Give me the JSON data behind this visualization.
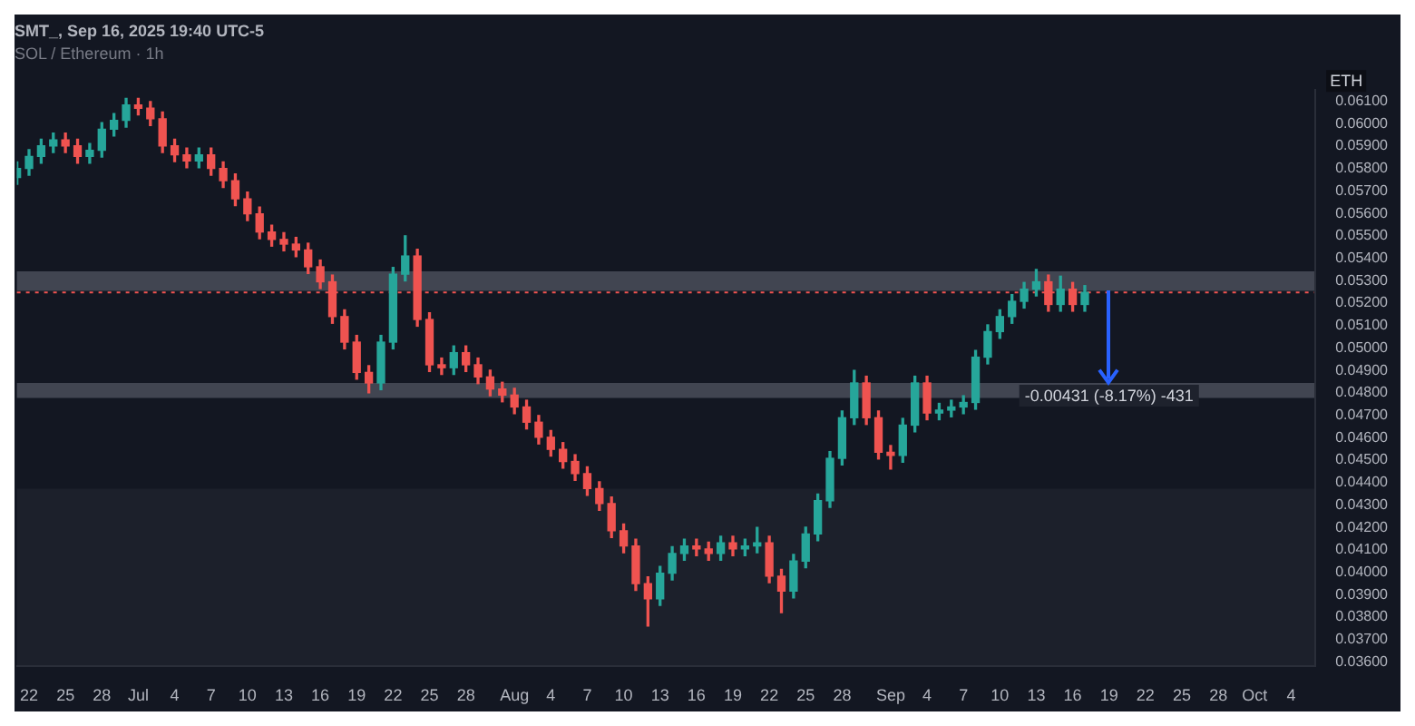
{
  "chart_data": {
    "type": "candlestick",
    "title": "SMT_, Sep 16, 2025 19:40 UTC-5",
    "subtitle": "SOL / Ethereum · 1h",
    "ylabel": "ETH",
    "x": [
      "2025-06-21",
      "2025-06-22",
      "2025-06-23",
      "2025-06-24",
      "2025-06-25",
      "2025-06-26",
      "2025-06-27",
      "2025-06-28",
      "2025-06-29",
      "2025-06-30",
      "2025-07-01",
      "2025-07-02",
      "2025-07-03",
      "2025-07-04",
      "2025-07-05",
      "2025-07-06",
      "2025-07-07",
      "2025-07-08",
      "2025-07-09",
      "2025-07-10",
      "2025-07-11",
      "2025-07-12",
      "2025-07-13",
      "2025-07-14",
      "2025-07-15",
      "2025-07-16",
      "2025-07-17",
      "2025-07-18",
      "2025-07-19",
      "2025-07-20",
      "2025-07-21",
      "2025-07-22",
      "2025-07-23",
      "2025-07-24",
      "2025-07-25",
      "2025-07-26",
      "2025-07-27",
      "2025-07-28",
      "2025-07-29",
      "2025-07-30",
      "2025-07-31",
      "2025-08-01",
      "2025-08-02",
      "2025-08-03",
      "2025-08-04",
      "2025-08-05",
      "2025-08-06",
      "2025-08-07",
      "2025-08-08",
      "2025-08-09",
      "2025-08-10",
      "2025-08-11",
      "2025-08-12",
      "2025-08-13",
      "2025-08-14",
      "2025-08-15",
      "2025-08-16",
      "2025-08-17",
      "2025-08-18",
      "2025-08-19",
      "2025-08-20",
      "2025-08-21",
      "2025-08-22",
      "2025-08-23",
      "2025-08-24",
      "2025-08-25",
      "2025-08-26",
      "2025-08-27",
      "2025-08-28",
      "2025-08-29",
      "2025-08-30",
      "2025-08-31",
      "2025-09-01",
      "2025-09-02",
      "2025-09-03",
      "2025-09-04",
      "2025-09-05",
      "2025-09-06",
      "2025-09-07",
      "2025-09-08",
      "2025-09-09",
      "2025-09-10",
      "2025-09-11",
      "2025-09-12",
      "2025-09-13",
      "2025-09-14",
      "2025-09-15",
      "2025-09-16",
      "2025-09-17"
    ],
    "ohlc": [
      [
        0.0576,
        0.0583,
        0.0573,
        0.058
      ],
      [
        0.058,
        0.05884,
        0.0577,
        0.05854
      ],
      [
        0.05854,
        0.05931,
        0.05824,
        0.05901
      ],
      [
        0.05901,
        0.05958,
        0.05871,
        0.05928
      ],
      [
        0.05928,
        0.05958,
        0.05871,
        0.05901
      ],
      [
        0.05901,
        0.05931,
        0.05824,
        0.05854
      ],
      [
        0.05854,
        0.05911,
        0.05824,
        0.05881
      ],
      [
        0.05881,
        0.06005,
        0.05851,
        0.05975
      ],
      [
        0.05975,
        0.06045,
        0.05945,
        0.06015
      ],
      [
        0.06015,
        0.06113,
        0.05985,
        0.06083
      ],
      [
        0.06083,
        0.06113,
        0.06039,
        0.06069
      ],
      [
        0.06069,
        0.06099,
        0.05992,
        0.06022
      ],
      [
        0.06022,
        0.06052,
        0.05871,
        0.05901
      ],
      [
        0.05901,
        0.05931,
        0.05831,
        0.05861
      ],
      [
        0.05861,
        0.05891,
        0.05804,
        0.05834
      ],
      [
        0.05834,
        0.05891,
        0.05804,
        0.05861
      ],
      [
        0.05861,
        0.05891,
        0.0577,
        0.058
      ],
      [
        0.058,
        0.0583,
        0.05716,
        0.05746
      ],
      [
        0.05746,
        0.05776,
        0.05635,
        0.05665
      ],
      [
        0.05665,
        0.05695,
        0.05568,
        0.05598
      ],
      [
        0.05598,
        0.05628,
        0.05487,
        0.05517
      ],
      [
        0.05517,
        0.05547,
        0.05454,
        0.05484
      ],
      [
        0.05484,
        0.05514,
        0.05433,
        0.05463
      ],
      [
        0.05463,
        0.05493,
        0.05407,
        0.05437
      ],
      [
        0.05437,
        0.05467,
        0.05332,
        0.05362
      ],
      [
        0.05362,
        0.05392,
        0.05265,
        0.05295
      ],
      [
        0.05295,
        0.05325,
        0.0511,
        0.0514
      ],
      [
        0.0514,
        0.0517,
        0.04996,
        0.05026
      ],
      [
        0.05026,
        0.05056,
        0.04861,
        0.04891
      ],
      [
        0.04891,
        0.04921,
        0.048,
        0.04844
      ],
      [
        0.04844,
        0.05056,
        0.04814,
        0.05026
      ],
      [
        0.05026,
        0.05359,
        0.04996,
        0.05329
      ],
      [
        0.05329,
        0.055,
        0.05299,
        0.0541
      ],
      [
        0.0541,
        0.0544,
        0.05097,
        0.05127
      ],
      [
        0.05127,
        0.05157,
        0.04895,
        0.04925
      ],
      [
        0.04925,
        0.04955,
        0.04882,
        0.04912
      ],
      [
        0.04912,
        0.05009,
        0.04882,
        0.04979
      ],
      [
        0.04979,
        0.05009,
        0.04895,
        0.04925
      ],
      [
        0.04925,
        0.04955,
        0.04841,
        0.04871
      ],
      [
        0.04871,
        0.04901,
        0.04787,
        0.04817
      ],
      [
        0.04817,
        0.04847,
        0.0476,
        0.0479
      ],
      [
        0.0479,
        0.0482,
        0.04707,
        0.04737
      ],
      [
        0.04737,
        0.04767,
        0.04639,
        0.04669
      ],
      [
        0.04669,
        0.04699,
        0.04572,
        0.04602
      ],
      [
        0.04602,
        0.04632,
        0.04518,
        0.04548
      ],
      [
        0.04548,
        0.04578,
        0.04464,
        0.04494
      ],
      [
        0.04494,
        0.04524,
        0.0441,
        0.0444
      ],
      [
        0.0444,
        0.0447,
        0.04343,
        0.04373
      ],
      [
        0.04373,
        0.04403,
        0.04276,
        0.04306
      ],
      [
        0.04306,
        0.04336,
        0.04155,
        0.04185
      ],
      [
        0.04185,
        0.04215,
        0.04087,
        0.04117
      ],
      [
        0.04117,
        0.04147,
        0.03919,
        0.03949
      ],
      [
        0.03949,
        0.03979,
        0.0376,
        0.03882
      ],
      [
        0.03882,
        0.04026,
        0.03852,
        0.03996
      ],
      [
        0.03996,
        0.04114,
        0.03966,
        0.04084
      ],
      [
        0.04084,
        0.04147,
        0.04054,
        0.04117
      ],
      [
        0.04117,
        0.04147,
        0.04074,
        0.04104
      ],
      [
        0.04104,
        0.04134,
        0.04054,
        0.04084
      ],
      [
        0.04084,
        0.04161,
        0.04054,
        0.04131
      ],
      [
        0.04131,
        0.04161,
        0.04074,
        0.04104
      ],
      [
        0.04104,
        0.04147,
        0.04074,
        0.04117
      ],
      [
        0.04117,
        0.042,
        0.04087,
        0.04131
      ],
      [
        0.04131,
        0.04161,
        0.03953,
        0.03983
      ],
      [
        0.03983,
        0.04013,
        0.0382,
        0.03916
      ],
      [
        0.03916,
        0.0408,
        0.03886,
        0.0405
      ],
      [
        0.0405,
        0.04201,
        0.0402,
        0.04171
      ],
      [
        0.04171,
        0.04349,
        0.04141,
        0.04319
      ],
      [
        0.04319,
        0.04538,
        0.04289,
        0.04508
      ],
      [
        0.04508,
        0.04719,
        0.04478,
        0.04689
      ],
      [
        0.04689,
        0.049,
        0.04659,
        0.04844
      ],
      [
        0.04844,
        0.04874,
        0.04659,
        0.04689
      ],
      [
        0.04689,
        0.04719,
        0.04505,
        0.04535
      ],
      [
        0.04535,
        0.04565,
        0.0446,
        0.04521
      ],
      [
        0.04521,
        0.04686,
        0.04491,
        0.04656
      ],
      [
        0.04656,
        0.04874,
        0.04626,
        0.04844
      ],
      [
        0.04844,
        0.04874,
        0.0468,
        0.0471
      ],
      [
        0.0471,
        0.04753,
        0.0468,
        0.04723
      ],
      [
        0.04723,
        0.04767,
        0.04693,
        0.04737
      ],
      [
        0.04737,
        0.04787,
        0.04707,
        0.04757
      ],
      [
        0.04757,
        0.04989,
        0.04727,
        0.04959
      ],
      [
        0.04959,
        0.05103,
        0.04929,
        0.05073
      ],
      [
        0.05073,
        0.0517,
        0.05043,
        0.0514
      ],
      [
        0.0514,
        0.05238,
        0.0511,
        0.05208
      ],
      [
        0.05208,
        0.05292,
        0.05178,
        0.05262
      ],
      [
        0.05262,
        0.0535,
        0.05232,
        0.05295
      ],
      [
        0.05295,
        0.05325,
        0.05164,
        0.05194
      ],
      [
        0.05194,
        0.0532,
        0.05164,
        0.05262
      ],
      [
        0.05262,
        0.05292,
        0.05164,
        0.05194
      ],
      [
        0.05194,
        0.05278,
        0.05164,
        0.05248
      ]
    ],
    "xlim": [
      "2025-06-21",
      "2025-10-06"
    ],
    "xticks": [
      {
        "value": "2025-06-22",
        "label": "22"
      },
      {
        "value": "2025-06-25",
        "label": "25"
      },
      {
        "value": "2025-06-28",
        "label": "28"
      },
      {
        "value": "2025-07-01",
        "label": "Jul"
      },
      {
        "value": "2025-07-04",
        "label": "4"
      },
      {
        "value": "2025-07-07",
        "label": "7"
      },
      {
        "value": "2025-07-10",
        "label": "10"
      },
      {
        "value": "2025-07-13",
        "label": "13"
      },
      {
        "value": "2025-07-16",
        "label": "16"
      },
      {
        "value": "2025-07-19",
        "label": "19"
      },
      {
        "value": "2025-07-22",
        "label": "22"
      },
      {
        "value": "2025-07-25",
        "label": "25"
      },
      {
        "value": "2025-07-28",
        "label": "28"
      },
      {
        "value": "2025-08-01",
        "label": "Aug"
      },
      {
        "value": "2025-08-04",
        "label": "4"
      },
      {
        "value": "2025-08-07",
        "label": "7"
      },
      {
        "value": "2025-08-10",
        "label": "10"
      },
      {
        "value": "2025-08-13",
        "label": "13"
      },
      {
        "value": "2025-08-16",
        "label": "16"
      },
      {
        "value": "2025-08-19",
        "label": "19"
      },
      {
        "value": "2025-08-22",
        "label": "22"
      },
      {
        "value": "2025-08-25",
        "label": "25"
      },
      {
        "value": "2025-08-28",
        "label": "28"
      },
      {
        "value": "2025-09-01",
        "label": "Sep"
      },
      {
        "value": "2025-09-04",
        "label": "4"
      },
      {
        "value": "2025-09-07",
        "label": "7"
      },
      {
        "value": "2025-09-10",
        "label": "10"
      },
      {
        "value": "2025-09-13",
        "label": "13"
      },
      {
        "value": "2025-09-16",
        "label": "16"
      },
      {
        "value": "2025-09-19",
        "label": "19"
      },
      {
        "value": "2025-09-22",
        "label": "22"
      },
      {
        "value": "2025-09-25",
        "label": "25"
      },
      {
        "value": "2025-09-28",
        "label": "28"
      },
      {
        "value": "2025-10-01",
        "label": "Oct"
      },
      {
        "value": "2025-10-04",
        "label": "4"
      }
    ],
    "ylim": [
      0.0358,
      0.0615
    ],
    "yticks": [
      {
        "value": 0.036,
        "label": "0.03600"
      },
      {
        "value": 0.037,
        "label": "0.03700"
      },
      {
        "value": 0.038,
        "label": "0.03800"
      },
      {
        "value": 0.039,
        "label": "0.03900"
      },
      {
        "value": 0.04,
        "label": "0.04000"
      },
      {
        "value": 0.041,
        "label": "0.04100"
      },
      {
        "value": 0.042,
        "label": "0.04200"
      },
      {
        "value": 0.043,
        "label": "0.04300"
      },
      {
        "value": 0.044,
        "label": "0.04400"
      },
      {
        "value": 0.045,
        "label": "0.04500"
      },
      {
        "value": 0.046,
        "label": "0.04600"
      },
      {
        "value": 0.047,
        "label": "0.04700"
      },
      {
        "value": 0.048,
        "label": "0.04800"
      },
      {
        "value": 0.049,
        "label": "0.04900"
      },
      {
        "value": 0.05,
        "label": "0.05000"
      },
      {
        "value": 0.051,
        "label": "0.05100"
      },
      {
        "value": 0.052,
        "label": "0.05200"
      },
      {
        "value": 0.053,
        "label": "0.05300"
      },
      {
        "value": 0.054,
        "label": "0.05400"
      },
      {
        "value": 0.055,
        "label": "0.05500"
      },
      {
        "value": 0.056,
        "label": "0.05600"
      },
      {
        "value": 0.057,
        "label": "0.05700"
      },
      {
        "value": 0.058,
        "label": "0.05800"
      },
      {
        "value": 0.059,
        "label": "0.05900"
      },
      {
        "value": 0.06,
        "label": "0.06000"
      },
      {
        "value": 0.061,
        "label": "0.06100"
      }
    ],
    "bands": [
      {
        "axis": "y",
        "from": 0.0358,
        "to": 0.04373,
        "color": "#1e222d"
      },
      {
        "axis": "y",
        "from": 0.05255,
        "to": 0.05342,
        "color": "#4a4e59"
      },
      {
        "axis": "y",
        "from": 0.04777,
        "to": 0.04844,
        "color": "#4a4e59"
      }
    ],
    "ref_lines": [
      {
        "axis": "y",
        "value": 0.05248,
        "color": "#ef5350",
        "line_style": "dotted"
      }
    ],
    "annotations": [
      {
        "text": "-0.00431 (-8.17%) -431",
        "x": "2025-09-19",
        "y": 0.04844
      }
    ],
    "grid": false,
    "legend": false
  }
}
